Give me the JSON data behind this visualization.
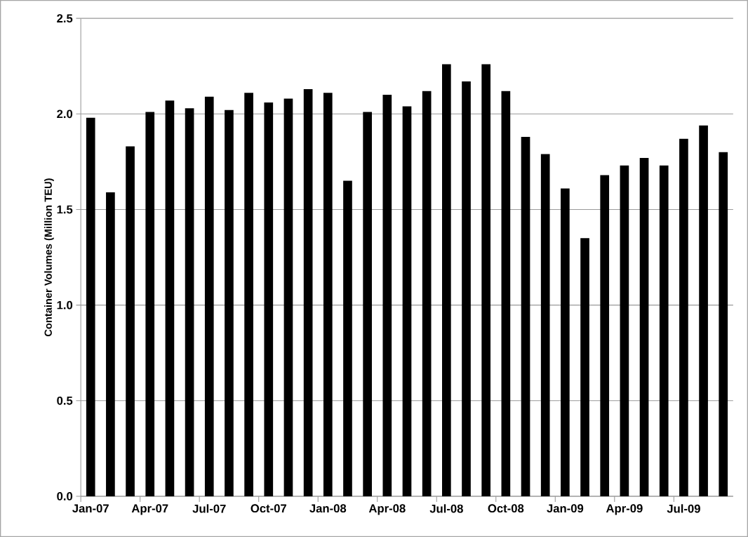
{
  "chart_data": {
    "type": "bar",
    "ylabel": "Container Volumes (Million TEU)",
    "categories": [
      "Jan-07",
      null,
      null,
      "Apr-07",
      null,
      null,
      "Jul-07",
      null,
      null,
      "Oct-07",
      null,
      null,
      "Jan-08",
      null,
      null,
      "Apr-08",
      null,
      null,
      "Jul-08",
      null,
      null,
      "Oct-08",
      null,
      null,
      "Jan-09",
      null,
      null,
      "Apr-09",
      null,
      null,
      "Jul-09",
      null,
      null
    ],
    "values": [
      1.98,
      1.59,
      1.83,
      2.01,
      2.07,
      2.03,
      2.09,
      2.02,
      2.11,
      2.06,
      2.08,
      2.13,
      2.11,
      1.65,
      2.01,
      2.1,
      2.04,
      2.12,
      2.26,
      2.17,
      2.26,
      2.12,
      1.88,
      1.79,
      1.61,
      1.35,
      1.68,
      1.73,
      1.77,
      1.73,
      1.87,
      1.94,
      1.8
    ],
    "color": "#000000",
    "ylim": [
      0,
      2.5
    ],
    "yticks": [
      {
        "value": 0,
        "label": "0.0"
      },
      {
        "value": 0.5,
        "label": "0.5"
      },
      {
        "value": 1,
        "label": "1.0"
      },
      {
        "value": 1.5,
        "label": "1.5"
      },
      {
        "value": 2,
        "label": "2.0"
      },
      {
        "value": 2.5,
        "label": "2.5"
      }
    ],
    "grid": "y"
  }
}
